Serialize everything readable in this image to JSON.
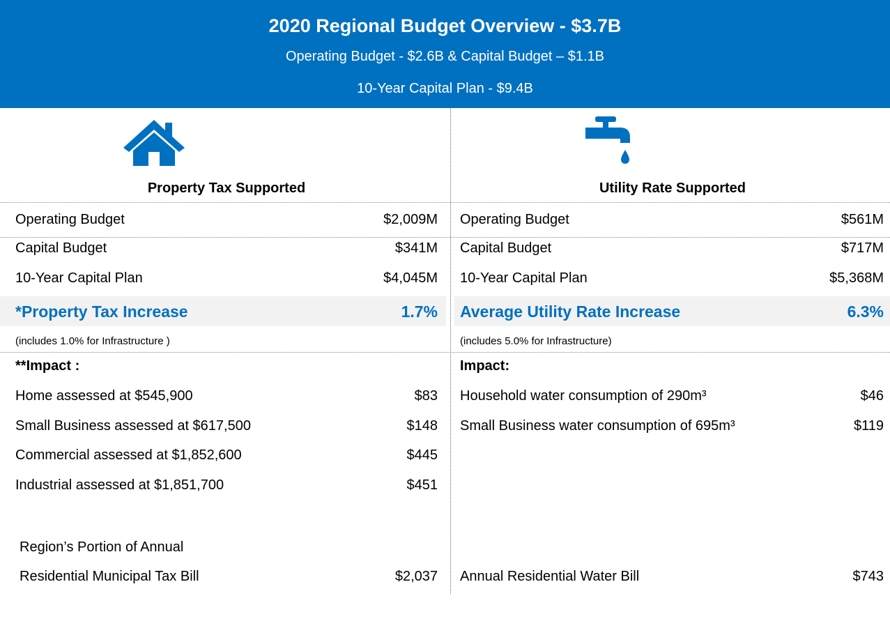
{
  "header": {
    "title": "2020 Regional Budget Overview - $3.7B",
    "lines": [
      "Operating Budget - $2.6B & Capital Budget – $1.1B",
      "10-Year Capital Plan - $9.4B"
    ]
  },
  "columns": [
    {
      "heading": "Property Tax Supported",
      "rows": [
        {
          "label": "Operating Budget",
          "value": "$2,009M"
        },
        {
          "label": "Capital Budget",
          "value": "$341M"
        },
        {
          "label": "10-Year Capital Plan",
          "value": "$4,045M"
        }
      ],
      "increase": {
        "label": "*Property Tax Increase",
        "value": "1.7%"
      },
      "note": "(includes 1.0% for Infrastructure )",
      "impact_heading": "**Impact :",
      "impacts": [
        {
          "label": "Home assessed at $545,900",
          "value": "$83"
        },
        {
          "label": "Small Business assessed at $617,500",
          "value": "$148"
        },
        {
          "label": "Commercial assessed at $1,852,600",
          "value": "$445"
        },
        {
          "label": "Industrial assessed at $1,851,700",
          "value": "$451"
        }
      ],
      "bill": {
        "label_lines": [
          "Region’s Portion of Annual",
          "Residential Municipal Tax Bill"
        ],
        "value": "$2,037"
      }
    },
    {
      "heading": "Utility Rate Supported",
      "rows": [
        {
          "label": "Operating Budget",
          "value": "$561M"
        },
        {
          "label": "Capital Budget",
          "value": "$717M"
        },
        {
          "label": "10-Year Capital Plan",
          "value": "$5,368M"
        }
      ],
      "increase": {
        "label": "Average Utility Rate Increase",
        "value": "6.3%"
      },
      "note": "(includes 5.0% for Infrastructure)",
      "impact_heading": "Impact:",
      "impacts": [
        {
          "label": "Household water consumption of 290m³",
          "value": "$46"
        },
        {
          "label": "Small Business water consumption of 695m³",
          "value": "$119"
        }
      ],
      "bill": {
        "label_lines": [
          "Annual Residential Water Bill"
        ],
        "value": "$743"
      }
    }
  ]
}
